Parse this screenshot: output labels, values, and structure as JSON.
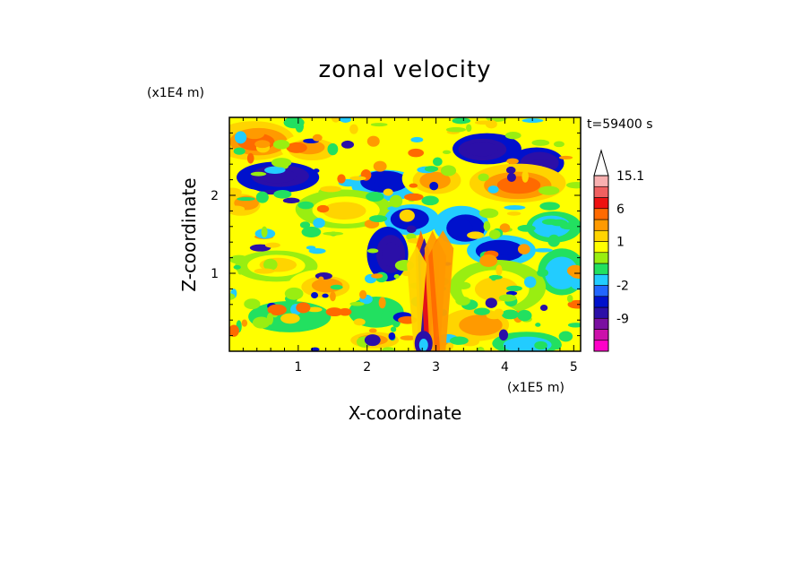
{
  "chart_data": {
    "type": "heatmap",
    "title": "zonal velocity",
    "time_label": "t=59400 s",
    "xlabel": "X-coordinate",
    "ylabel": "Z-coordinate",
    "x_scale_label": "(x1E5 m)",
    "y_scale_label": "(x1E4 m)",
    "x_ticks": [
      "1",
      "2",
      "3",
      "4",
      "5"
    ],
    "y_ticks": [
      "1",
      "2"
    ],
    "xlim": [
      0,
      5.1
    ],
    "ylim": [
      0,
      3.0
    ],
    "colorbar": {
      "labels": [
        "15.1",
        "6",
        "1",
        "-2",
        "-9"
      ],
      "levels": [
        {
          "color": "#ff00c8",
          "value": -15
        },
        {
          "color": "#cc11aa",
          "value": -12
        },
        {
          "color": "#7a0fa0",
          "value": -9
        },
        {
          "color": "#2b0fa8",
          "value": -6
        },
        {
          "color": "#0011cc",
          "value": -3
        },
        {
          "color": "#2266ff",
          "value": -2
        },
        {
          "color": "#22ccff",
          "value": -1.5
        },
        {
          "color": "#22e060",
          "value": -0.5
        },
        {
          "color": "#99ee11",
          "value": 0.3
        },
        {
          "color": "#ffff00",
          "value": 1
        },
        {
          "color": "#ffd400",
          "value": 2
        },
        {
          "color": "#ff9a00",
          "value": 4
        },
        {
          "color": "#ff6a00",
          "value": 6
        },
        {
          "color": "#ee1111",
          "value": 9
        },
        {
          "color": "#f06060",
          "value": 12
        },
        {
          "color": "#f8b0b0",
          "value": 15.1
        }
      ]
    }
  }
}
